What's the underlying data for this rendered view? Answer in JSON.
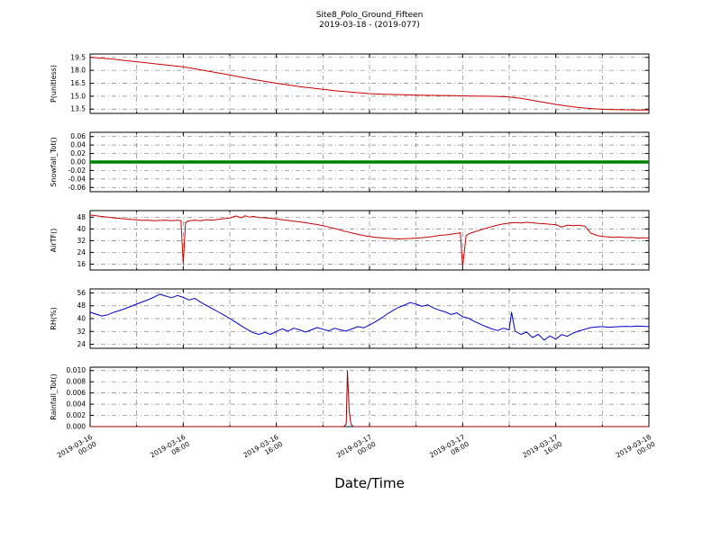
{
  "header": {
    "title": "Site8_Polo_Ground_Fifteen",
    "subtitle": "2019-03-18 - (2019-077)"
  },
  "xlabel": "Date/Time",
  "colors": {
    "background": "#ffffff",
    "frame": "#000000",
    "grid": "#808080"
  },
  "chart_data": {
    "type": "line",
    "x_unit": "hours since 2019-03-16 00:00",
    "xlim": [
      0,
      48
    ],
    "x_major_ticks": [
      0,
      8,
      16,
      24,
      32,
      40,
      48
    ],
    "x_minor_step": 4,
    "grid": "dash-dot",
    "x_tick_labels": [
      [
        "2019-03-16",
        "00:00"
      ],
      [
        "2019-03-16",
        "08:00"
      ],
      [
        "2019-03-16",
        "16:00"
      ],
      [
        "2019-03-17",
        "00:00"
      ],
      [
        "2019-03-17",
        "08:00"
      ],
      [
        "2019-03-17",
        "16:00"
      ],
      [
        "2019-03-18",
        "00:00"
      ]
    ],
    "panels": [
      {
        "ylabel": "P(unitless)",
        "color": "#cc0000",
        "linewidth": 1,
        "ylim": [
          13.0,
          19.9
        ],
        "yticks": [
          13.5,
          15.0,
          16.5,
          18.0,
          19.5
        ],
        "ytick_labels": [
          "13.5",
          "15.0",
          "16.5",
          "18.0",
          "19.5"
        ],
        "points": [
          [
            0,
            19.5
          ],
          [
            1,
            19.42
          ],
          [
            2,
            19.3
          ],
          [
            3,
            19.15
          ],
          [
            4,
            19.0
          ],
          [
            5,
            18.85
          ],
          [
            6,
            18.7
          ],
          [
            7,
            18.55
          ],
          [
            8,
            18.4
          ],
          [
            9,
            18.18
          ],
          [
            10,
            17.95
          ],
          [
            11,
            17.7
          ],
          [
            12,
            17.45
          ],
          [
            13,
            17.2
          ],
          [
            14,
            16.95
          ],
          [
            15,
            16.72
          ],
          [
            16,
            16.5
          ],
          [
            17,
            16.3
          ],
          [
            18,
            16.12
          ],
          [
            19,
            15.95
          ],
          [
            20,
            15.8
          ],
          [
            21,
            15.65
          ],
          [
            22,
            15.52
          ],
          [
            23,
            15.4
          ],
          [
            24,
            15.3
          ],
          [
            25,
            15.24
          ],
          [
            26,
            15.2
          ],
          [
            27,
            15.16
          ],
          [
            28,
            15.12
          ],
          [
            29,
            15.1
          ],
          [
            30,
            15.08
          ],
          [
            31,
            15.06
          ],
          [
            32,
            15.04
          ],
          [
            33,
            15.02
          ],
          [
            34,
            15.0
          ],
          [
            35,
            14.98
          ],
          [
            36,
            14.9
          ],
          [
            37,
            14.75
          ],
          [
            38,
            14.52
          ],
          [
            39,
            14.28
          ],
          [
            40,
            14.05
          ],
          [
            41,
            13.85
          ],
          [
            42,
            13.68
          ],
          [
            43,
            13.56
          ],
          [
            44,
            13.48
          ],
          [
            45,
            13.44
          ],
          [
            46,
            13.42
          ],
          [
            47,
            13.4
          ],
          [
            48,
            13.4
          ]
        ]
      },
      {
        "ylabel": "Snowfall_Tot()",
        "color": "#008000",
        "linewidth": 3.5,
        "ylim": [
          -0.07,
          0.07
        ],
        "yticks": [
          -0.06,
          -0.04,
          -0.02,
          0.0,
          0.02,
          0.04,
          0.06
        ],
        "ytick_labels": [
          "-0.06",
          "-0.04",
          "-0.02",
          "0.00",
          "0.02",
          "0.04",
          "0.06"
        ],
        "points": [
          [
            0,
            0
          ],
          [
            48,
            0
          ]
        ]
      },
      {
        "ylabel": "AirTF()",
        "color": "#cc0000",
        "linewidth": 1,
        "ylim": [
          12,
          52.5
        ],
        "yticks": [
          16,
          24,
          32,
          40,
          48
        ],
        "ytick_labels": [
          "16",
          "24",
          "32",
          "40",
          "48"
        ],
        "points": [
          [
            0,
            49.5
          ],
          [
            0.5,
            49
          ],
          [
            1,
            48.5
          ],
          [
            1.5,
            48
          ],
          [
            2,
            47.5
          ],
          [
            2.5,
            47.2
          ],
          [
            3,
            46.8
          ],
          [
            3.5,
            46.5
          ],
          [
            4,
            46.2
          ],
          [
            4.5,
            45.8
          ],
          [
            5,
            46
          ],
          [
            5.5,
            45.6
          ],
          [
            6,
            45.8
          ],
          [
            6.5,
            46
          ],
          [
            7,
            45.6
          ],
          [
            7.5,
            46
          ],
          [
            7.8,
            45.5
          ],
          [
            8,
            16
          ],
          [
            8.2,
            44.5
          ],
          [
            8.5,
            45.5
          ],
          [
            9,
            46
          ],
          [
            9.5,
            45.6
          ],
          [
            10,
            46.3
          ],
          [
            10.5,
            46
          ],
          [
            11,
            46.5
          ],
          [
            11.5,
            47
          ],
          [
            12,
            47.5
          ],
          [
            12.5,
            48.8
          ],
          [
            13,
            47.6
          ],
          [
            13.3,
            49
          ],
          [
            13.7,
            48
          ],
          [
            14,
            48.6
          ],
          [
            14.5,
            47.8
          ],
          [
            15,
            47.6
          ],
          [
            15.5,
            47.2
          ],
          [
            16,
            46.8
          ],
          [
            16.5,
            46.3
          ],
          [
            17,
            45.8
          ],
          [
            17.5,
            45.3
          ],
          [
            18,
            44.8
          ],
          [
            18.5,
            44.2
          ],
          [
            19,
            43.6
          ],
          [
            19.5,
            43
          ],
          [
            20,
            42.2
          ],
          [
            20.5,
            41.3
          ],
          [
            21,
            40.3
          ],
          [
            21.5,
            39.2
          ],
          [
            22,
            38.2
          ],
          [
            22.5,
            37.2
          ],
          [
            23,
            36.3
          ],
          [
            23.5,
            35.5
          ],
          [
            24,
            34.8
          ],
          [
            24.5,
            34.3
          ],
          [
            25,
            33.9
          ],
          [
            25.5,
            33.6
          ],
          [
            26,
            33.4
          ],
          [
            26.5,
            33.2
          ],
          [
            27,
            33.4
          ],
          [
            27.5,
            33.5
          ],
          [
            28,
            33.8
          ],
          [
            28.5,
            34
          ],
          [
            29,
            34.4
          ],
          [
            29.5,
            34.9
          ],
          [
            30,
            35.6
          ],
          [
            30.5,
            35.9
          ],
          [
            31,
            36.4
          ],
          [
            31.5,
            37
          ],
          [
            31.8,
            37.4
          ],
          [
            32,
            14
          ],
          [
            32.3,
            35.5
          ],
          [
            32.6,
            37
          ],
          [
            33,
            38
          ],
          [
            33.5,
            39.2
          ],
          [
            34,
            40.5
          ],
          [
            34.5,
            41.6
          ],
          [
            35,
            42.6
          ],
          [
            35.5,
            43.4
          ],
          [
            36,
            44
          ],
          [
            36.5,
            44.4
          ],
          [
            37,
            44.1
          ],
          [
            37.5,
            44.5
          ],
          [
            38,
            44.2
          ],
          [
            38.5,
            43.8
          ],
          [
            39,
            43.6
          ],
          [
            39.5,
            43.2
          ],
          [
            40,
            43
          ],
          [
            40.5,
            41.2
          ],
          [
            41,
            42.6
          ],
          [
            41.5,
            42.2
          ],
          [
            42,
            42.5
          ],
          [
            42.5,
            41.8
          ],
          [
            43,
            37.2
          ],
          [
            43.5,
            35.6
          ],
          [
            44,
            34.8
          ],
          [
            44.5,
            34.6
          ],
          [
            45,
            34.2
          ],
          [
            45.5,
            34.5
          ],
          [
            46,
            34.1
          ],
          [
            46.5,
            34.2
          ],
          [
            47,
            33.8
          ],
          [
            47.5,
            34
          ],
          [
            48,
            33.8
          ]
        ]
      },
      {
        "ylabel": "RH(%)",
        "color": "#0000cc",
        "linewidth": 1,
        "ylim": [
          21.5,
          58.5
        ],
        "yticks": [
          24,
          32,
          40,
          48,
          56
        ],
        "ytick_labels": [
          "24",
          "32",
          "40",
          "48",
          "56"
        ],
        "points": [
          [
            0,
            44
          ],
          [
            0.5,
            42.8
          ],
          [
            1,
            41.6
          ],
          [
            1.5,
            42.4
          ],
          [
            2,
            43.8
          ],
          [
            2.5,
            45
          ],
          [
            3,
            46.2
          ],
          [
            3.5,
            47.6
          ],
          [
            4,
            49
          ],
          [
            4.5,
            50.4
          ],
          [
            5,
            51.8
          ],
          [
            5.5,
            53.4
          ],
          [
            6,
            55.2
          ],
          [
            6.5,
            54
          ],
          [
            7,
            53
          ],
          [
            7.5,
            54.4
          ],
          [
            8,
            53.2
          ],
          [
            8.5,
            51.6
          ],
          [
            9,
            52.6
          ],
          [
            9.5,
            50.2
          ],
          [
            10,
            48.2
          ],
          [
            10.5,
            46.2
          ],
          [
            11,
            44.2
          ],
          [
            11.5,
            42.2
          ],
          [
            12,
            40
          ],
          [
            12.5,
            37.8
          ],
          [
            13,
            35.4
          ],
          [
            13.5,
            33.2
          ],
          [
            14,
            31.2
          ],
          [
            14.5,
            30.2
          ],
          [
            15,
            31.4
          ],
          [
            15.5,
            30.2
          ],
          [
            16,
            32
          ],
          [
            16.5,
            33.6
          ],
          [
            17,
            32.2
          ],
          [
            17.5,
            34
          ],
          [
            18,
            33
          ],
          [
            18.5,
            31.6
          ],
          [
            19,
            33
          ],
          [
            19.5,
            34.4
          ],
          [
            20,
            33.4
          ],
          [
            20.5,
            32.4
          ],
          [
            21,
            34
          ],
          [
            21.5,
            33
          ],
          [
            22,
            32.2
          ],
          [
            22.5,
            33.6
          ],
          [
            23,
            35
          ],
          [
            23.5,
            34.2
          ],
          [
            24,
            36
          ],
          [
            24.5,
            38
          ],
          [
            25,
            40.2
          ],
          [
            25.5,
            42.8
          ],
          [
            26,
            45
          ],
          [
            26.5,
            47
          ],
          [
            27,
            48.4
          ],
          [
            27.5,
            50
          ],
          [
            28,
            49
          ],
          [
            28.5,
            47.6
          ],
          [
            29,
            48.6
          ],
          [
            29.5,
            46.6
          ],
          [
            30,
            45.2
          ],
          [
            30.5,
            44.2
          ],
          [
            31,
            42.6
          ],
          [
            31.5,
            43.6
          ],
          [
            32,
            41.2
          ],
          [
            32.5,
            40.2
          ],
          [
            33,
            38.2
          ],
          [
            33.5,
            36.6
          ],
          [
            34,
            35
          ],
          [
            34.5,
            33.6
          ],
          [
            35,
            32.6
          ],
          [
            35.5,
            34
          ],
          [
            36,
            33
          ],
          [
            36.2,
            44
          ],
          [
            36.5,
            32.2
          ],
          [
            37,
            30.2
          ],
          [
            37.5,
            31.6
          ],
          [
            38,
            28.2
          ],
          [
            38.5,
            30.2
          ],
          [
            39,
            26.6
          ],
          [
            39.5,
            29.2
          ],
          [
            40,
            27.2
          ],
          [
            40.5,
            30
          ],
          [
            41,
            29
          ],
          [
            41.5,
            31
          ],
          [
            42,
            32.4
          ],
          [
            42.5,
            33.4
          ],
          [
            43,
            34.4
          ],
          [
            43.5,
            34.8
          ],
          [
            44,
            35
          ],
          [
            44.5,
            34.6
          ],
          [
            45,
            34.8
          ],
          [
            45.5,
            35
          ],
          [
            46,
            35.2
          ],
          [
            46.5,
            35
          ],
          [
            47,
            35.4
          ],
          [
            47.5,
            35.2
          ],
          [
            48,
            35
          ]
        ]
      },
      {
        "ylabel": "Rainfall_Tot()",
        "color": "#990000",
        "linewidth": 1,
        "ylim": [
          0,
          0.0106
        ],
        "yticks": [
          0.0,
          0.002,
          0.004,
          0.006,
          0.008,
          0.01
        ],
        "ytick_labels": [
          "0.000",
          "0.002",
          "0.004",
          "0.006",
          "0.008",
          "0.010"
        ],
        "points": [
          [
            0,
            0
          ],
          [
            21.8,
            0
          ],
          [
            22,
            0.0005
          ],
          [
            22.1,
            0.01
          ],
          [
            22.25,
            0.003
          ],
          [
            22.4,
            0.0005
          ],
          [
            22.6,
            0
          ],
          [
            48,
            0
          ]
        ]
      }
    ]
  }
}
